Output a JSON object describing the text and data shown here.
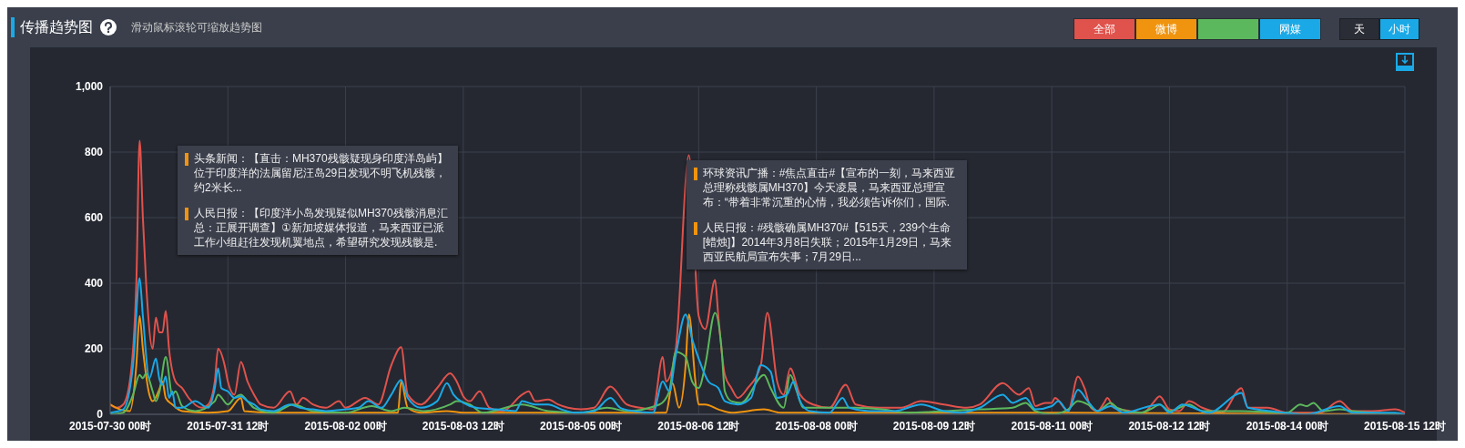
{
  "chart_data": {
    "type": "line",
    "title": "传播趋势图",
    "subtitle": "滑动鼠标滚轮可缩放趋势图",
    "annotations": [
      "天",
      "小时",
      "头条新闻：【直击：MH370残骸疑现身印度洋岛屿】位于印度洋的法属留尼汪岛29日发现不明飞机残骸，约2米长...",
      "人民日报：【印度洋小岛发现疑似MH370残骸消息汇总：正展开调查】①新加坡媒体报道，马来西亚已派工作小组赶往发现机翼地点，希望研究发现残骸是.",
      "环球资讯广播：#焦点直击#【宣布的一刻，马来西亚总理称残骸属MH370】今天凌晨，马来西亚总理宣布：“带着非常沉重的心情，我必须告诉你们，国际.",
      "人民日报：#残骸确属MH370#【515天，239个生命[蜡烛]】2014年3月8日失联；2015年1月29日，马来西亚民航局宣布失事；7月29日..."
    ],
    "xlim": [
      "2015-07-30T00:00",
      "2015-08-15T12:00"
    ],
    "xticks": [
      {
        "value": "2015-07-30T00:00",
        "label": "2015-07-30 00时"
      },
      {
        "value": "2015-07-31T12:00",
        "label": "2015-07-31 12时"
      },
      {
        "value": "2015-08-02T00:00",
        "label": "2015-08-02 00时"
      },
      {
        "value": "2015-08-03T12:00",
        "label": "2015-08-03 12时"
      },
      {
        "value": "2015-08-05T00:00",
        "label": "2015-08-05 00时"
      },
      {
        "value": "2015-08-06T12:00",
        "label": "2015-08-06 12时"
      },
      {
        "value": "2015-08-08T00:00",
        "label": "2015-08-08 00时"
      },
      {
        "value": "2015-08-09T12:00",
        "label": "2015-08-09 12时"
      },
      {
        "value": "2015-08-11T00:00",
        "label": "2015-08-11 00时"
      },
      {
        "value": "2015-08-12T12:00",
        "label": "2015-08-12 12时"
      },
      {
        "value": "2015-08-14T00:00",
        "label": "2015-08-14 00时"
      },
      {
        "value": "2015-08-15T12:00",
        "label": "2015-08-15 12时"
      }
    ],
    "ylim": [
      0,
      1000
    ],
    "yticks": [
      0,
      200,
      400,
      600,
      800,
      {
        "value": 1000,
        "label": "1,000"
      }
    ],
    "grid": true,
    "legend": "top right",
    "marker": "none",
    "line_style": "solid",
    "series": [
      {
        "name": "全部",
        "color": "#e0524c",
        "x": [
          "2015-07-30T00:00",
          "2015-07-30T02:00",
          "2015-07-30T04:00",
          "2015-07-30T06:00",
          "2015-07-30T08:00",
          "2015-07-30T09:00",
          "2015-07-30T10:00",
          "2015-07-30T11:00",
          "2015-07-30T13:00",
          "2015-07-30T14:00",
          "2015-07-30T15:00",
          "2015-07-30T16:00",
          "2015-07-30T17:00",
          "2015-07-30T18:00",
          "2015-07-30T20:00",
          "2015-07-30T22:00",
          "2015-07-31T00:00",
          "2015-07-31T04:00",
          "2015-07-31T06:00",
          "2015-07-31T08:00",
          "2015-07-31T09:00",
          "2015-07-31T11:00",
          "2015-07-31T12:00",
          "2015-07-31T14:00",
          "2015-07-31T16:00",
          "2015-07-31T18:00",
          "2015-07-31T20:00",
          "2015-07-31T22:00",
          "2015-08-01T02:00",
          "2015-08-01T07:00",
          "2015-08-01T09:00",
          "2015-08-01T11:00",
          "2015-08-01T14:00",
          "2015-08-01T18:00",
          "2015-08-01T22:00",
          "2015-08-02T00:00",
          "2015-08-02T06:00",
          "2015-08-02T10:00",
          "2015-08-02T14:00",
          "2015-08-02T17:00",
          "2015-08-02T19:00",
          "2015-08-02T23:00",
          "2015-08-03T04:00",
          "2015-08-03T08:00",
          "2015-08-03T10:00",
          "2015-08-03T12:00",
          "2015-08-03T14:00",
          "2015-08-03T17:00",
          "2015-08-03T20:00",
          "2015-08-04T00:00",
          "2015-08-04T06:00",
          "2015-08-04T08:00",
          "2015-08-04T10:00",
          "2015-08-04T14:00",
          "2015-08-04T17:00",
          "2015-08-04T20:00",
          "2015-08-05T00:00",
          "2015-08-05T04:00",
          "2015-08-05T09:00",
          "2015-08-05T14:00",
          "2015-08-05T18:00",
          "2015-08-05T22:00",
          "2015-08-06T01:00",
          "2015-08-06T02:00",
          "2015-08-06T05:00",
          "2015-08-06T09:00",
          "2015-08-06T12:00",
          "2015-08-06T14:00",
          "2015-08-06T17:00",
          "2015-08-06T18:00",
          "2015-08-06T20:00",
          "2015-08-06T22:00",
          "2015-08-07T00:00",
          "2015-08-07T03:00",
          "2015-08-07T07:00",
          "2015-08-07T09:00",
          "2015-08-07T12:00",
          "2015-08-07T14:00",
          "2015-08-07T16:00",
          "2015-08-07T19:00",
          "2015-08-07T23:00",
          "2015-08-08T04:00",
          "2015-08-08T09:00",
          "2015-08-08T12:00",
          "2015-08-08T19:00",
          "2015-08-09T02:00",
          "2015-08-09T08:00",
          "2015-08-09T15:00",
          "2015-08-09T22:00",
          "2015-08-10T02:00",
          "2015-08-10T09:00",
          "2015-08-10T14:00",
          "2015-08-10T17:00",
          "2015-08-10T19:00",
          "2015-08-10T22:00",
          "2015-08-11T00:00",
          "2015-08-11T01:00",
          "2015-08-11T05:00",
          "2015-08-11T08:00",
          "2015-08-11T10:00",
          "2015-08-11T12:00",
          "2015-08-11T14:00",
          "2015-08-11T16:00",
          "2015-08-11T17:00",
          "2015-08-11T19:00",
          "2015-08-12T00:00",
          "2015-08-12T04:00",
          "2015-08-12T07:00",
          "2015-08-12T09:00",
          "2015-08-12T12:00",
          "2015-08-12T15:00",
          "2015-08-12T18:00",
          "2015-08-12T22:00",
          "2015-08-13T04:00",
          "2015-08-13T10:00",
          "2015-08-13T12:00",
          "2015-08-13T18:00",
          "2015-08-14T00:00",
          "2015-08-14T10:00",
          "2015-08-14T16:00",
          "2015-08-14T20:00",
          "2015-08-15T02:00",
          "2015-08-15T09:00",
          "2015-08-15T12:00"
        ],
        "values": [
          30,
          20,
          30,
          100,
          400,
          835,
          600,
          400,
          200,
          295,
          250,
          250,
          315,
          200,
          100,
          80,
          50,
          20,
          30,
          100,
          200,
          150,
          100,
          60,
          160,
          100,
          60,
          30,
          20,
          70,
          30,
          50,
          30,
          20,
          40,
          20,
          50,
          30,
          150,
          205,
          60,
          30,
          80,
          125,
          100,
          55,
          40,
          70,
          20,
          10,
          60,
          70,
          40,
          45,
          30,
          20,
          15,
          20,
          85,
          30,
          20,
          15,
          175,
          100,
          200,
          790,
          300,
          260,
          410,
          300,
          120,
          80,
          50,
          80,
          150,
          310,
          100,
          60,
          140,
          60,
          30,
          20,
          90,
          30,
          20,
          20,
          40,
          30,
          20,
          30,
          95,
          60,
          80,
          25,
          35,
          35,
          50,
          10,
          115,
          80,
          20,
          10,
          35,
          50,
          20,
          10,
          5,
          35,
          55,
          15,
          10,
          40,
          20,
          5,
          80,
          20,
          20,
          5,
          5,
          40,
          10,
          10,
          15,
          5
        ]
      },
      {
        "name": "微博",
        "color": "#f0940f",
        "x": [
          "2015-07-30T00:00",
          "2015-07-30T03:00",
          "2015-07-30T06:00",
          "2015-07-30T08:00",
          "2015-07-30T09:00",
          "2015-07-30T10:00",
          "2015-07-30T12:00",
          "2015-07-30T13:00",
          "2015-07-30T15:00",
          "2015-07-30T16:00",
          "2015-07-30T17:00",
          "2015-07-30T19:00",
          "2015-07-30T22:00",
          "2015-07-31T06:00",
          "2015-07-31T12:00",
          "2015-07-31T16:00",
          "2015-07-31T17:00",
          "2015-08-01T02:00",
          "2015-08-02T16:00",
          "2015-08-02T17:00",
          "2015-08-02T19:00",
          "2015-08-02T23:00",
          "2015-08-03T07:00",
          "2015-08-03T12:00",
          "2015-08-06T02:00",
          "2015-08-06T04:00",
          "2015-08-06T06:00",
          "2015-08-06T08:00",
          "2015-08-06T09:00",
          "2015-08-06T11:00",
          "2015-08-06T12:00",
          "2015-08-06T14:00",
          "2015-08-06T18:00",
          "2015-08-06T22:00",
          "2015-08-07T08:00",
          "2015-08-07T13:00",
          "2015-08-10T20:00",
          "2015-08-15T12:00"
        ],
        "values": [
          30,
          15,
          10,
          150,
          300,
          200,
          60,
          40,
          75,
          100,
          50,
          30,
          10,
          5,
          10,
          50,
          10,
          5,
          5,
          100,
          20,
          5,
          10,
          5,
          5,
          95,
          20,
          150,
          305,
          100,
          30,
          30,
          15,
          5,
          15,
          5,
          5,
          0
        ]
      },
      {
        "color": "#5cb85c",
        "x": [
          "2015-07-30T00:00",
          "2015-07-30T04:00",
          "2015-07-30T07:00",
          "2015-07-30T09:00",
          "2015-07-30T10:00",
          "2015-07-30T11:00",
          "2015-07-30T13:00",
          "2015-07-30T14:00",
          "2015-07-30T15:00",
          "2015-07-30T17:00",
          "2015-07-30T19:00",
          "2015-07-30T20:00",
          "2015-07-30T22:00",
          "2015-07-31T02:00",
          "2015-07-31T08:00",
          "2015-07-31T09:00",
          "2015-07-31T12:00",
          "2015-07-31T14:00",
          "2015-07-31T16:00",
          "2015-07-31T18:00",
          "2015-07-31T20:00",
          "2015-08-01T02:00",
          "2015-08-01T08:00",
          "2015-08-01T14:00",
          "2015-08-02T00:00",
          "2015-08-02T08:00",
          "2015-08-02T14:00",
          "2015-08-02T18:00",
          "2015-08-03T00:00",
          "2015-08-03T08:00",
          "2015-08-03T10:00",
          "2015-08-03T14:00",
          "2015-08-03T18:00",
          "2015-08-04T06:00",
          "2015-08-04T14:00",
          "2015-08-05T00:00",
          "2015-08-05T08:00",
          "2015-08-05T14:00",
          "2015-08-06T00:00",
          "2015-08-06T03:00",
          "2015-08-06T05:00",
          "2015-08-06T08:00",
          "2015-08-06T10:00",
          "2015-08-06T12:00",
          "2015-08-06T14:00",
          "2015-08-06T17:00",
          "2015-08-06T19:00",
          "2015-08-06T20:00",
          "2015-08-06T22:00",
          "2015-08-07T01:00",
          "2015-08-07T08:00",
          "2015-08-07T10:00",
          "2015-08-07T14:00",
          "2015-08-07T16:00",
          "2015-08-07T18:00",
          "2015-08-07T20:00",
          "2015-08-08T04:00",
          "2015-08-08T12:00",
          "2015-08-08T20:00",
          "2015-08-09T04:00",
          "2015-08-09T15:00",
          "2015-08-10T02:00",
          "2015-08-10T12:00",
          "2015-08-10T16:00",
          "2015-08-10T19:00",
          "2015-08-11T00:00",
          "2015-08-11T05:00",
          "2015-08-11T08:00",
          "2015-08-11T11:00",
          "2015-08-11T14:00",
          "2015-08-11T18:00",
          "2015-08-11T20:00",
          "2015-08-12T03:00",
          "2015-08-12T07:00",
          "2015-08-12T09:00",
          "2015-08-12T12:00",
          "2015-08-12T18:00",
          "2015-08-12T22:00",
          "2015-08-13T10:00",
          "2015-08-14T00:00",
          "2015-08-14T04:00",
          "2015-08-14T06:00",
          "2015-08-14T08:00",
          "2015-08-14T11:00",
          "2015-08-14T16:00",
          "2015-08-14T20:00",
          "2015-08-15T12:00"
        ],
        "values": [
          0,
          5,
          60,
          120,
          110,
          125,
          70,
          40,
          65,
          175,
          60,
          70,
          25,
          10,
          40,
          60,
          30,
          50,
          60,
          40,
          20,
          5,
          30,
          10,
          5,
          25,
          10,
          20,
          10,
          30,
          40,
          30,
          5,
          30,
          10,
          5,
          20,
          10,
          30,
          70,
          190,
          175,
          100,
          80,
          150,
          310,
          200,
          70,
          40,
          35,
          120,
          80,
          20,
          120,
          70,
          20,
          20,
          20,
          15,
          5,
          10,
          15,
          20,
          35,
          10,
          0,
          15,
          40,
          30,
          10,
          35,
          20,
          5,
          20,
          30,
          10,
          30,
          10,
          10,
          5,
          30,
          25,
          35,
          10,
          15,
          10,
          0
        ]
      },
      {
        "name": "网媒",
        "color": "#1aa9e6",
        "x": [
          "2015-07-30T00:00",
          "2015-07-30T04:00",
          "2015-07-30T07:00",
          "2015-07-30T09:00",
          "2015-07-30T10:00",
          "2015-07-30T12:00",
          "2015-07-30T14:00",
          "2015-07-30T15:00",
          "2015-07-30T16:00",
          "2015-07-30T17:00",
          "2015-07-30T18:00",
          "2015-07-30T19:00",
          "2015-07-30T20:00",
          "2015-07-30T22:00",
          "2015-07-31T02:00",
          "2015-07-31T06:00",
          "2015-07-31T08:00",
          "2015-07-31T09:00",
          "2015-07-31T10:00",
          "2015-07-31T12:00",
          "2015-07-31T14:00",
          "2015-07-31T16:00",
          "2015-07-31T18:00",
          "2015-07-31T20:00",
          "2015-07-31T22:00",
          "2015-08-01T02:00",
          "2015-08-01T07:00",
          "2015-08-01T10:00",
          "2015-08-01T14:00",
          "2015-08-01T18:00",
          "2015-08-02T00:00",
          "2015-08-02T04:00",
          "2015-08-02T07:00",
          "2015-08-02T11:00",
          "2015-08-02T14:00",
          "2015-08-02T17:00",
          "2015-08-02T19:00",
          "2015-08-02T23:00",
          "2015-08-03T04:00",
          "2015-08-03T07:00",
          "2015-08-03T09:00",
          "2015-08-03T12:00",
          "2015-08-03T16:00",
          "2015-08-03T22:00",
          "2015-08-04T04:00",
          "2015-08-04T06:00",
          "2015-08-04T10:00",
          "2015-08-04T14:00",
          "2015-08-04T18:00",
          "2015-08-04T22:00",
          "2015-08-05T04:00",
          "2015-08-05T09:00",
          "2015-08-05T12:00",
          "2015-08-05T16:00",
          "2015-08-05T22:00",
          "2015-08-06T01:00",
          "2015-08-06T03:00",
          "2015-08-06T05:00",
          "2015-08-06T08:00",
          "2015-08-06T10:00",
          "2015-08-06T12:00",
          "2015-08-06T15:00",
          "2015-08-06T18:00",
          "2015-08-06T20:00",
          "2015-08-07T00:00",
          "2015-08-07T04:00",
          "2015-08-07T07:00",
          "2015-08-07T10:00",
          "2015-08-07T12:00",
          "2015-08-07T15:00",
          "2015-08-07T17:00",
          "2015-08-07T19:00",
          "2015-08-07T22:00",
          "2015-08-08T04:00",
          "2015-08-08T08:00",
          "2015-08-08T10:00",
          "2015-08-08T16:00",
          "2015-08-09T00:00",
          "2015-08-09T08:00",
          "2015-08-09T15:00",
          "2015-08-09T20:00",
          "2015-08-10T02:00",
          "2015-08-10T09:00",
          "2015-08-10T12:00",
          "2015-08-10T16:00",
          "2015-08-10T19:00",
          "2015-08-11T00:00",
          "2015-08-11T02:00",
          "2015-08-11T05:00",
          "2015-08-11T08:00",
          "2015-08-11T11:00",
          "2015-08-11T14:00",
          "2015-08-11T18:00",
          "2015-08-11T22:00",
          "2015-08-12T06:00",
          "2015-08-12T09:00",
          "2015-08-12T12:00",
          "2015-08-12T16:00",
          "2015-08-12T18:00",
          "2015-08-13T00:00",
          "2015-08-13T10:00",
          "2015-08-13T12:00",
          "2015-08-13T19:00",
          "2015-08-14T06:00",
          "2015-08-14T16:00",
          "2015-08-14T20:00",
          "2015-08-15T09:00",
          "2015-08-15T12:00"
        ],
        "values": [
          5,
          15,
          150,
          415,
          300,
          110,
          170,
          110,
          90,
          115,
          50,
          70,
          20,
          20,
          40,
          20,
          80,
          140,
          80,
          70,
          50,
          55,
          40,
          30,
          15,
          10,
          30,
          20,
          15,
          10,
          15,
          20,
          40,
          20,
          60,
          105,
          50,
          20,
          40,
          95,
          60,
          35,
          20,
          15,
          10,
          40,
          30,
          30,
          15,
          5,
          10,
          50,
          20,
          10,
          5,
          100,
          70,
          180,
          305,
          230,
          170,
          100,
          80,
          40,
          30,
          50,
          150,
          130,
          50,
          60,
          100,
          40,
          10,
          5,
          50,
          20,
          10,
          10,
          30,
          10,
          5,
          20,
          60,
          35,
          50,
          15,
          25,
          40,
          10,
          75,
          40,
          10,
          25,
          5,
          25,
          30,
          5,
          30,
          25,
          5,
          65,
          20,
          10,
          0,
          25,
          5,
          5,
          0
        ]
      }
    ]
  }
}
